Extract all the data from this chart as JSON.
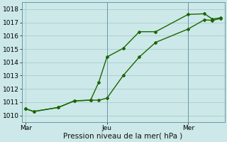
{
  "title": "",
  "xlabel": "Pression niveau de la mer( hPa )",
  "ylabel": "",
  "background_color": "#cce8e8",
  "grid_color": "#aacccc",
  "line_color": "#1a6600",
  "ylim": [
    1009.5,
    1018.5
  ],
  "yticks": [
    1010,
    1011,
    1012,
    1013,
    1014,
    1015,
    1016,
    1017,
    1018
  ],
  "xtick_labels": [
    "Mar",
    "Jeu",
    "Mer"
  ],
  "xtick_positions": [
    0.0,
    0.4167,
    0.8333
  ],
  "vlines": [
    0.4167,
    0.8333
  ],
  "line1_x": [
    0.0,
    0.042,
    0.167,
    0.25,
    0.333,
    0.375,
    0.417,
    0.5,
    0.583,
    0.667,
    0.833,
    0.917,
    0.958,
    1.0
  ],
  "line1_y": [
    1010.5,
    1010.3,
    1010.6,
    1011.1,
    1011.15,
    1011.15,
    1011.3,
    1013.0,
    1014.4,
    1015.5,
    1016.5,
    1017.2,
    1017.15,
    1017.3
  ],
  "line2_x": [
    0.0,
    0.042,
    0.167,
    0.25,
    0.333,
    0.375,
    0.417,
    0.5,
    0.583,
    0.667,
    0.833,
    0.917,
    0.958,
    1.0
  ],
  "line2_y": [
    1010.5,
    1010.3,
    1010.6,
    1011.1,
    1011.15,
    1012.5,
    1014.4,
    1015.05,
    1016.3,
    1016.3,
    1017.6,
    1017.65,
    1017.25,
    1017.35
  ],
  "font_size": 7.5,
  "tick_font_size": 6.5,
  "marker_size": 2.0,
  "line_width": 1.0
}
